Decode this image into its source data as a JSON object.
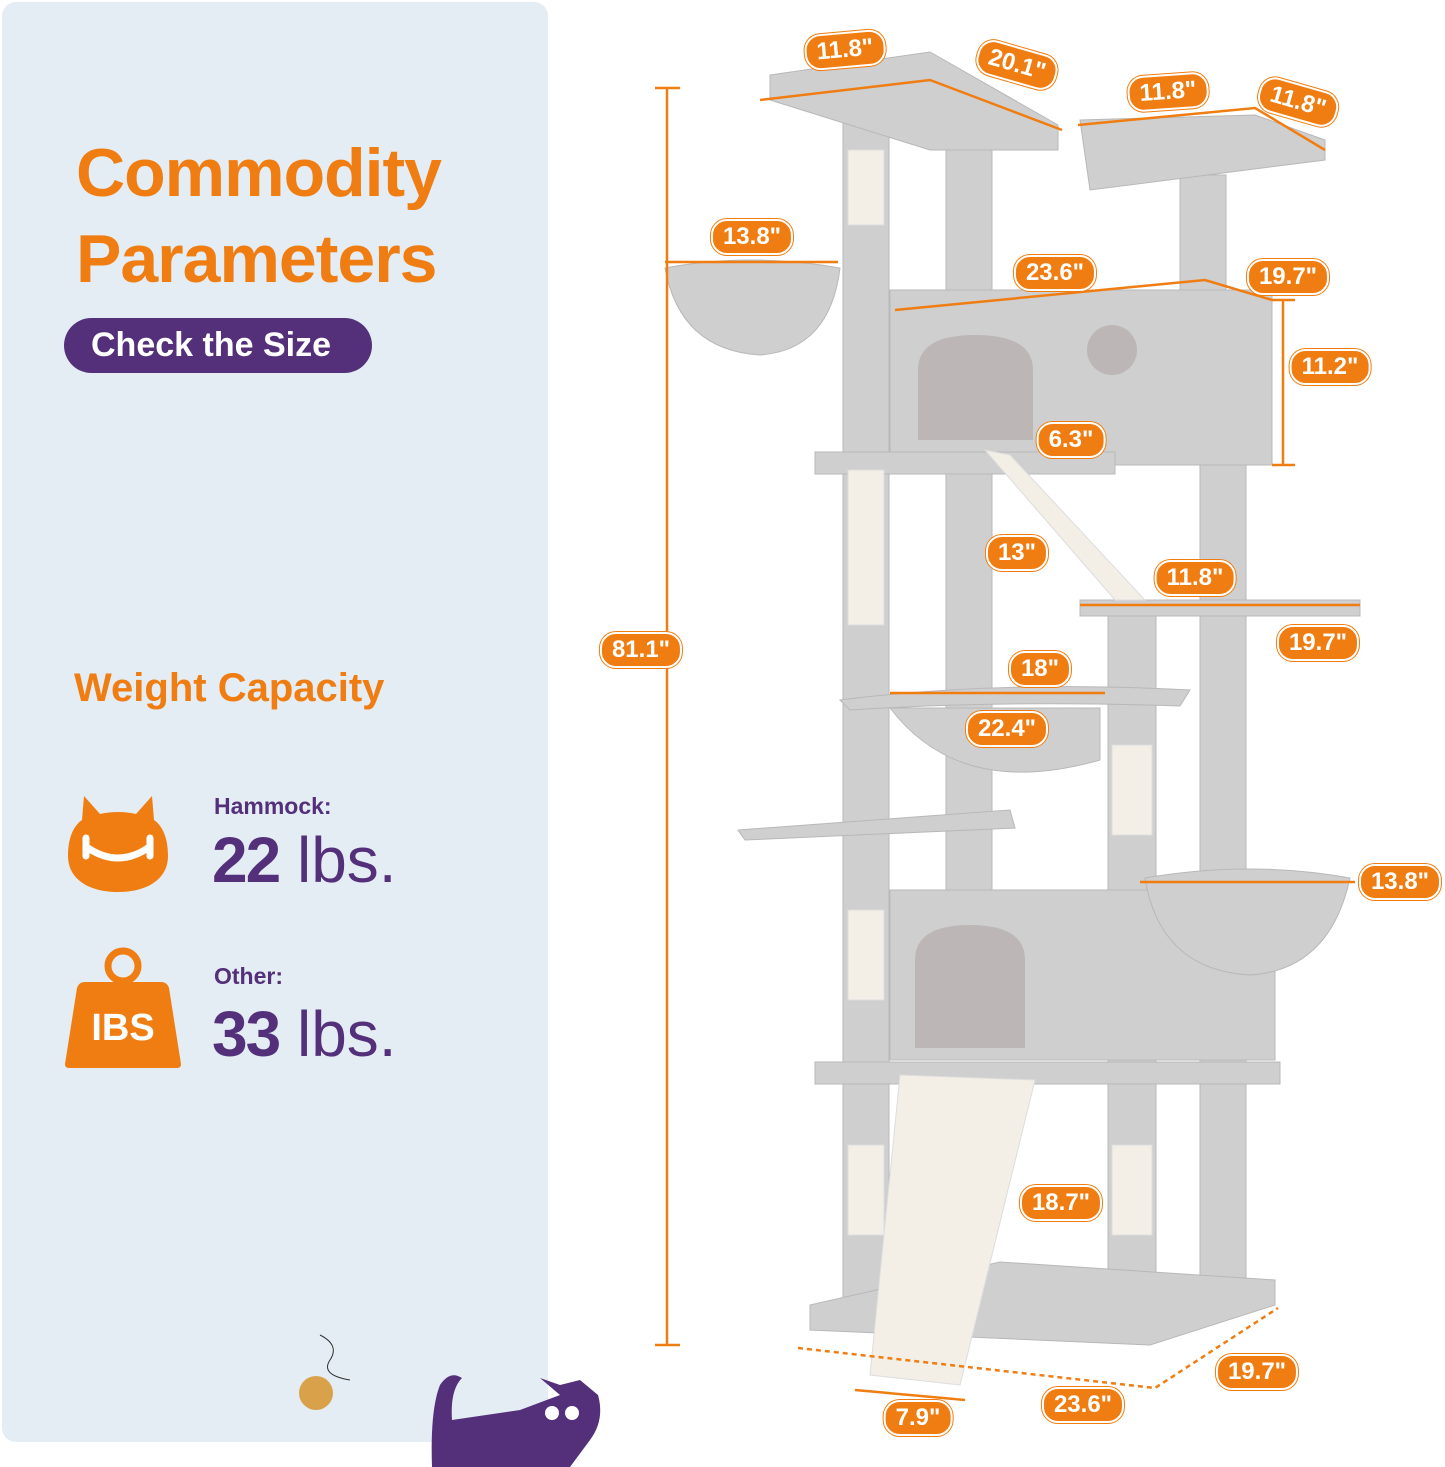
{
  "header": {
    "title_line1": "Commodity",
    "title_line2": "Parameters",
    "badge": "Check the Size"
  },
  "weight_capacity": {
    "heading": "Weight Capacity",
    "items": [
      {
        "label": "Hammock:",
        "value": "22",
        "unit": "lbs.",
        "icon": "cat-hammock-icon"
      },
      {
        "label": "Other:",
        "value": "33",
        "unit": "lbs.",
        "icon": "weight-icon",
        "icon_text": "IBS"
      }
    ]
  },
  "dimensions": [
    "11.8\"",
    "20.1\"",
    "11.8\"",
    "11.8\"",
    "13.8\"",
    "23.6\"",
    "19.7\"",
    "11.2\"",
    "6.3\"",
    "13\"",
    "11.8\"",
    "19.7\"",
    "81.1\"",
    "18\"",
    "22.4\"",
    "13.8\"",
    "18.7\"",
    "19.7\"",
    "23.6\"",
    "7.9\""
  ],
  "colors": {
    "accent": "#f07d12",
    "brand_purple": "#55307a",
    "panel_bg": "#e4ecf4",
    "plush_gray": "#cfcfcf"
  }
}
